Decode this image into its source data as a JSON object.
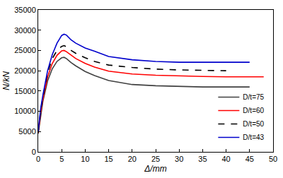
{
  "chart_data": {
    "type": "line",
    "x_label": "Δ/mm",
    "y_label": "N/kN",
    "xlim": [
      0,
      50
    ],
    "xticks": [
      0,
      5,
      10,
      15,
      20,
      25,
      30,
      35,
      40,
      45,
      50
    ],
    "ylim": [
      0,
      35000
    ],
    "yticks": [
      0,
      5000,
      10000,
      15000,
      20000,
      25000,
      30000,
      35000
    ],
    "grid": false,
    "legend": "lower right",
    "series": [
      {
        "name": "D/t=75",
        "color": "#404040",
        "line_style": "solid",
        "x": [
          0,
          0.5,
          1,
          2,
          3,
          4,
          5,
          5.5,
          6,
          7,
          8,
          10,
          12,
          15,
          20,
          25,
          30,
          35,
          40,
          45
        ],
        "values": [
          4500,
          9000,
          12500,
          17500,
          20500,
          22300,
          23200,
          23300,
          23000,
          22000,
          21200,
          19800,
          18800,
          17600,
          16600,
          16300,
          16100,
          16000,
          16000,
          16000
        ]
      },
      {
        "name": "D/t=60",
        "color": "#ff0000",
        "line_style": "solid",
        "x": [
          0,
          0.5,
          1,
          2,
          3,
          4,
          5,
          5.5,
          6,
          7,
          8,
          10,
          12,
          15,
          20,
          25,
          30,
          35,
          40,
          45,
          48
        ],
        "values": [
          4700,
          9500,
          13000,
          18500,
          21800,
          23800,
          24900,
          25000,
          24700,
          23800,
          23000,
          21800,
          20900,
          19900,
          19200,
          18900,
          18700,
          18600,
          18500,
          18500,
          18500
        ]
      },
      {
        "name": "D/t=50",
        "color": "#000000",
        "line_style": "dash",
        "x": [
          0,
          0.5,
          1,
          2,
          3,
          4,
          5,
          5.5,
          6,
          7,
          8,
          10,
          12,
          15,
          20,
          25,
          30,
          35,
          40
        ],
        "values": [
          4800,
          10000,
          13500,
          19500,
          23000,
          25000,
          26000,
          26200,
          25900,
          25000,
          24300,
          23200,
          22300,
          21400,
          20800,
          20400,
          20200,
          20100,
          20000
        ]
      },
      {
        "name": "D/t=43",
        "color": "#0000cc",
        "line_style": "solid",
        "x": [
          0,
          0.5,
          1,
          2,
          3,
          4,
          5,
          5.5,
          6,
          7,
          8,
          10,
          12,
          15,
          20,
          25,
          30,
          35,
          40,
          45
        ],
        "values": [
          5000,
          10500,
          14000,
          20000,
          24000,
          26800,
          28700,
          29000,
          28800,
          27600,
          26800,
          25600,
          24800,
          23500,
          22700,
          22300,
          22100,
          22100,
          22100,
          22100
        ]
      }
    ]
  }
}
